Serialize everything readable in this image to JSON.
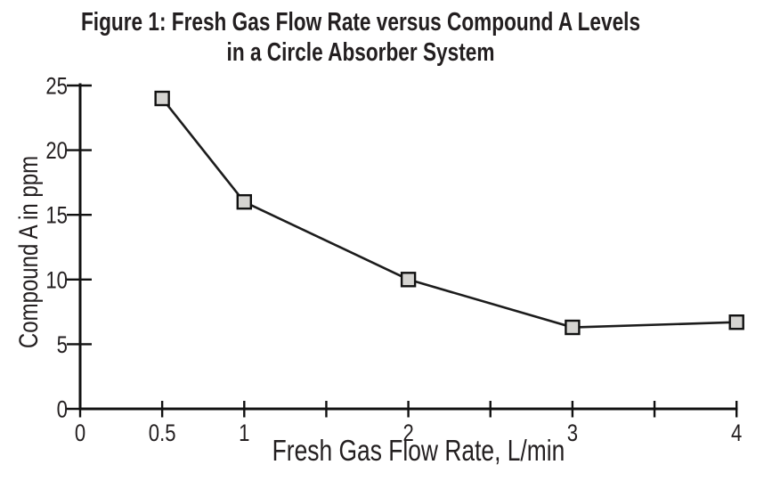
{
  "figure": {
    "title_line1": "Figure 1: Fresh Gas Flow Rate versus Compound A Levels",
    "title_line2": "in a Circle Absorber System"
  },
  "chart_data": {
    "type": "line",
    "title": "Figure 1: Fresh Gas Flow Rate versus Compound A Levels in a Circle Absorber System",
    "xlabel": "Fresh Gas Flow Rate, L/min",
    "ylabel": "Compound A in ppm",
    "x": [
      0.5,
      1,
      2,
      3,
      4
    ],
    "y": [
      24,
      16,
      10,
      6.3,
      6.7
    ],
    "xlim": [
      0,
      4
    ],
    "ylim": [
      0,
      25
    ],
    "x_ticks": [
      {
        "value": 0,
        "label": "0"
      },
      {
        "value": 0.5,
        "label": "0.5"
      },
      {
        "value": 1,
        "label": "1"
      },
      {
        "value": 1.5,
        "label": ""
      },
      {
        "value": 2,
        "label": "2"
      },
      {
        "value": 2.5,
        "label": ""
      },
      {
        "value": 3,
        "label": "3"
      },
      {
        "value": 3.5,
        "label": ""
      },
      {
        "value": 4,
        "label": "4"
      }
    ],
    "y_ticks": [
      {
        "value": 0,
        "label": "0"
      },
      {
        "value": 5,
        "label": "5"
      },
      {
        "value": 10,
        "label": "10"
      },
      {
        "value": 15,
        "label": "15"
      },
      {
        "value": 20,
        "label": "20"
      },
      {
        "value": 25,
        "label": "25"
      }
    ],
    "grid": false,
    "legend": false,
    "marker": "square",
    "marker_fill": "#d5d4d1",
    "marker_stroke": "#111111",
    "line_color": "#1c1c1c",
    "axis_color": "#111111"
  }
}
